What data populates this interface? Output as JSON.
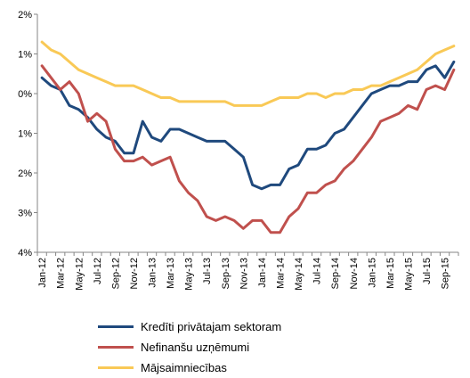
{
  "chart_data": {
    "type": "line",
    "title": "",
    "xlabel": "",
    "ylabel": "",
    "ylim": [
      -4,
      2
    ],
    "y_ticks": [
      2,
      1,
      0,
      -1,
      -2,
      -3,
      -4
    ],
    "y_tick_labels": [
      "2%",
      "1%",
      "0%",
      "1%",
      "2%",
      "3%",
      "4%"
    ],
    "x": [
      "Jan-12",
      "Feb-12",
      "Mar-12",
      "Apr-12",
      "May-12",
      "Jun-12",
      "Jul-12",
      "Aug-12",
      "Sep-12",
      "Oct-12",
      "Nov-12",
      "Dec-12",
      "Jan-13",
      "Feb-13",
      "Mar-13",
      "Apr-13",
      "May-13",
      "Jun-13",
      "Jul-13",
      "Aug-13",
      "Sep-13",
      "Oct-13",
      "Nov-13",
      "Dec-13",
      "Jan-14",
      "Feb-14",
      "Mar-14",
      "Apr-14",
      "May-14",
      "Jun-14",
      "Jul-14",
      "Aug-14",
      "Sep-14",
      "Oct-14",
      "Nov-14",
      "Dec-14",
      "Jan-15",
      "Feb-15",
      "Mar-15",
      "Apr-15",
      "May-15",
      "Jun-15",
      "Jul-15",
      "Aug-15",
      "Sep-15",
      "Oct-15"
    ],
    "x_tick_labels": [
      "Jan-12",
      "Mar-12",
      "May-12",
      "Jul-12",
      "Sep-12",
      "Nov-12",
      "Jan-13",
      "Mar-13",
      "May-13",
      "Jul-13",
      "Sep-13",
      "Nov-13",
      "Jan-14",
      "Mar-14",
      "May-14",
      "Jul-14",
      "Sep-14",
      "Nov-14",
      "Jan-15",
      "Mar-15",
      "May-15",
      "Jul-15",
      "Sep-15"
    ],
    "grid": false,
    "legend_position": "bottom",
    "series": [
      {
        "name": "Kredīti privātajam sektoram",
        "color": "#1F497D",
        "values": [
          0.4,
          0.2,
          0.1,
          -0.3,
          -0.4,
          -0.6,
          -0.9,
          -1.1,
          -1.2,
          -1.5,
          -1.5,
          -0.7,
          -1.1,
          -1.2,
          -0.9,
          -0.9,
          -1.0,
          -1.1,
          -1.2,
          -1.2,
          -1.2,
          -1.4,
          -1.6,
          -2.3,
          -2.4,
          -2.3,
          -2.3,
          -1.9,
          -1.8,
          -1.4,
          -1.4,
          -1.3,
          -1.0,
          -0.9,
          -0.6,
          -0.3,
          0.0,
          0.1,
          0.2,
          0.2,
          0.3,
          0.3,
          0.6,
          0.7,
          0.4,
          0.8
        ]
      },
      {
        "name": "Nefinanšu uzņēmumi",
        "color": "#C0504D",
        "values": [
          0.7,
          0.4,
          0.1,
          0.3,
          0.0,
          -0.7,
          -0.5,
          -0.7,
          -1.4,
          -1.7,
          -1.7,
          -1.6,
          -1.8,
          -1.7,
          -1.6,
          -2.2,
          -2.5,
          -2.7,
          -3.1,
          -3.2,
          -3.1,
          -3.2,
          -3.4,
          -3.2,
          -3.2,
          -3.5,
          -3.5,
          -3.1,
          -2.9,
          -2.5,
          -2.5,
          -2.3,
          -2.2,
          -1.9,
          -1.7,
          -1.4,
          -1.1,
          -0.7,
          -0.6,
          -0.5,
          -0.3,
          -0.4,
          0.1,
          0.2,
          0.1,
          0.6
        ]
      },
      {
        "name": "Mājsaimniecības",
        "color": "#F9C956",
        "values": [
          1.3,
          1.1,
          1.0,
          0.8,
          0.6,
          0.5,
          0.4,
          0.3,
          0.2,
          0.2,
          0.2,
          0.1,
          0.0,
          -0.1,
          -0.1,
          -0.2,
          -0.2,
          -0.2,
          -0.2,
          -0.2,
          -0.2,
          -0.3,
          -0.3,
          -0.3,
          -0.3,
          -0.2,
          -0.1,
          -0.1,
          -0.1,
          0.0,
          0.0,
          -0.1,
          0.0,
          0.0,
          0.1,
          0.1,
          0.2,
          0.2,
          0.3,
          0.4,
          0.5,
          0.6,
          0.8,
          1.0,
          1.1,
          1.2
        ]
      }
    ]
  }
}
